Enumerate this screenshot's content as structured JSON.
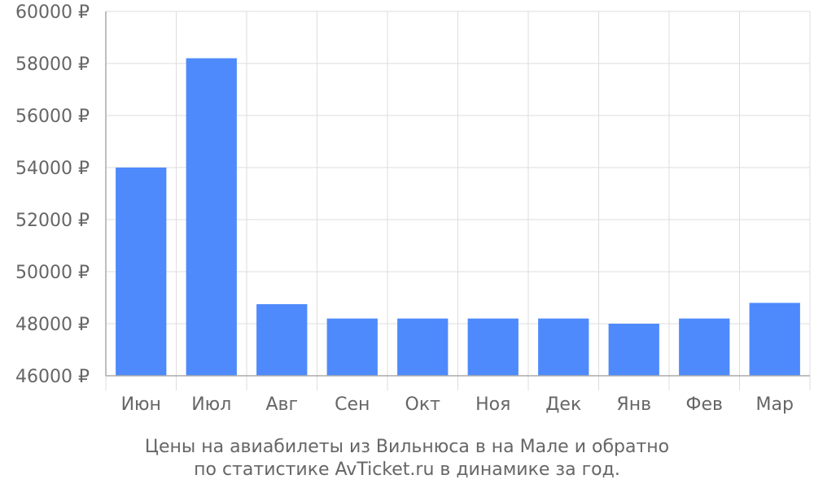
{
  "chart_data": {
    "type": "bar",
    "title": "",
    "xlabel": "",
    "ylabel": "",
    "currency_symbol": "₽",
    "categories": [
      "Июн",
      "Июл",
      "Авг",
      "Сен",
      "Окт",
      "Ноя",
      "Дек",
      "Янв",
      "Фев",
      "Мар"
    ],
    "values": [
      54000,
      58200,
      48750,
      48200,
      48200,
      48200,
      48200,
      48000,
      48200,
      48800
    ],
    "ylim": [
      46000,
      60000
    ],
    "yticks": [
      46000,
      48000,
      50000,
      52000,
      54000,
      56000,
      58000,
      60000
    ],
    "ytick_labels": [
      "46000 ₽",
      "48000 ₽",
      "50000 ₽",
      "52000 ₽",
      "54000 ₽",
      "56000 ₽",
      "58000 ₽",
      "60000 ₽"
    ],
    "grid": true,
    "legend": "none",
    "bar_color": "#4e8afc",
    "caption": [
      "Цены на авиабилеты из Вильнюса в на Мале и обратно",
      "по статистике AvTicket.ru в динамике за год."
    ]
  }
}
